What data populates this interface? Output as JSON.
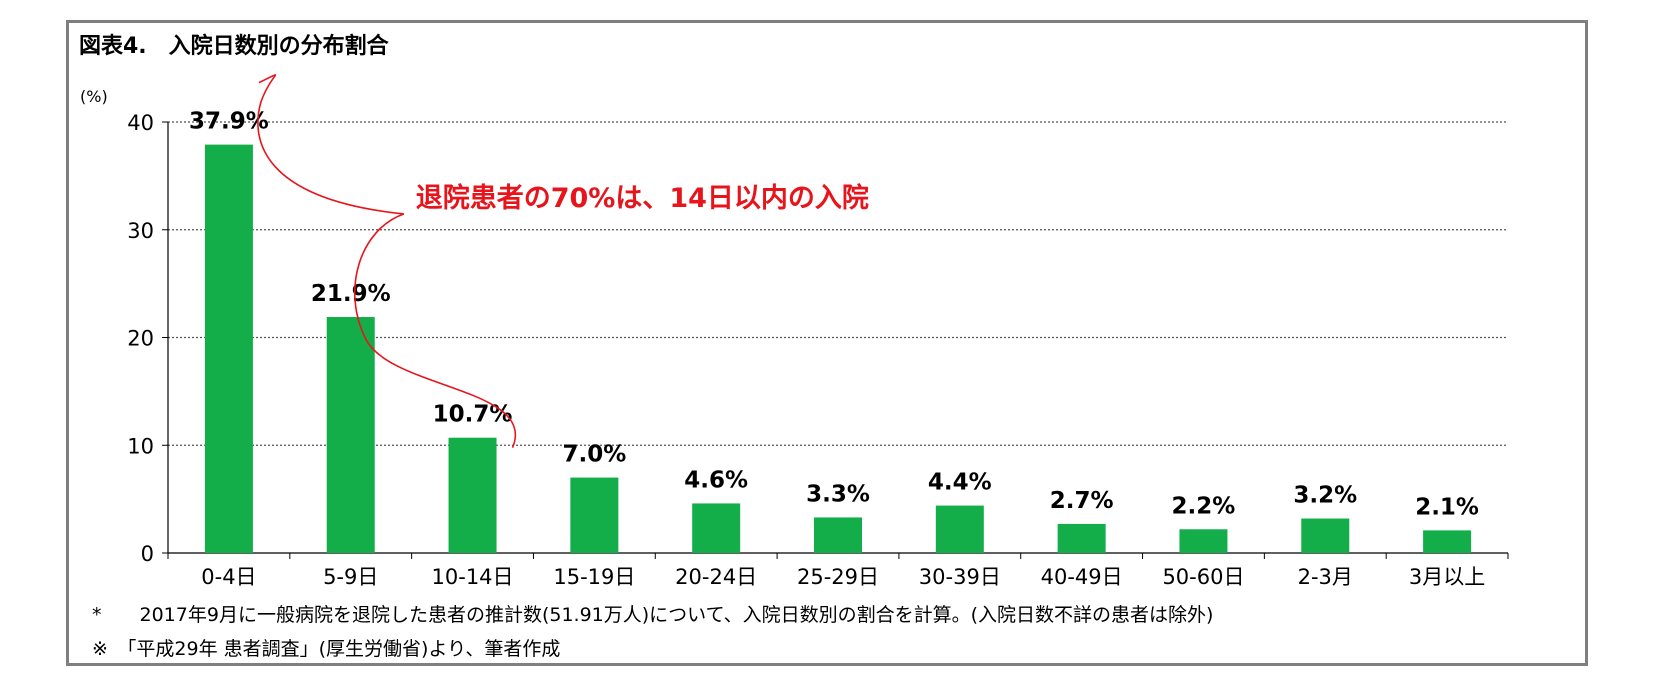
{
  "chart_data": {
    "type": "bar",
    "title": "図表4.　入院日数別の分布割合",
    "ylabel": "(%)",
    "ylim": [
      0,
      40
    ],
    "yticks": [
      0,
      10,
      20,
      30,
      40
    ],
    "grid": true,
    "categories": [
      "0-4日",
      "5-9日",
      "10-14日",
      "15-19日",
      "20-24日",
      "25-29日",
      "30-39日",
      "40-49日",
      "50-60日",
      "2-3月",
      "3月以上"
    ],
    "values": [
      37.9,
      21.9,
      10.7,
      7.0,
      4.6,
      3.3,
      4.4,
      2.7,
      2.2,
      3.2,
      2.1
    ],
    "data_labels": [
      "37.9%",
      "21.9%",
      "10.7%",
      "7.0%",
      "4.6%",
      "3.3%",
      "4.4%",
      "2.7%",
      "2.2%",
      "3.2%",
      "2.1%"
    ],
    "bar_color": "#13ad4a",
    "annotation": {
      "text": "退院患者の70%は、14日以内の入院",
      "color": "#e8141c",
      "range_categories": [
        "0-4日",
        "10-14日"
      ]
    }
  },
  "notes": [
    "*　　2017年9月に一般病院を退院した患者の推計数(51.91万人)について、入院日数別の割合を計算。(入院日数不詳の患者は除外)",
    "※　「平成29年 患者調査」(厚生労働省)より、筆者作成"
  ]
}
